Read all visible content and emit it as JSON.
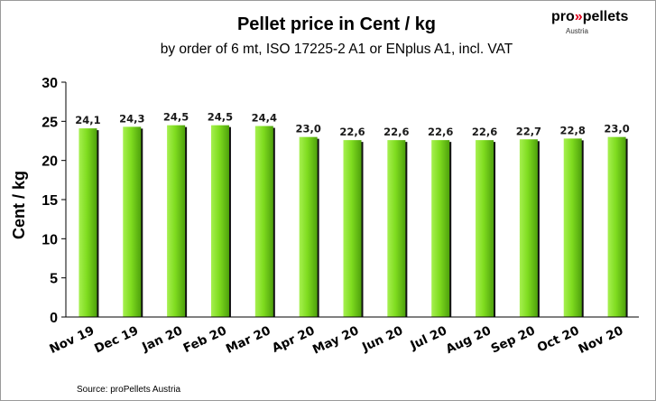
{
  "logo": {
    "prefix": "pro",
    "chevrons": "»",
    "suffix": "pellets",
    "sub": "Austria",
    "prefix_color": "#000000",
    "accent_color": "#e0001b"
  },
  "source": "Source:  proPellets Austria",
  "colors": {
    "bar_light": "#a6f050",
    "bar_main": "#7fdc1f",
    "bar_dark": "#4ea10c",
    "bar_shadow": "#111111"
  },
  "chart_data": {
    "type": "bar",
    "title": "Pellet price in  Cent / kg",
    "subtitle": "by order of 6 mt, ISO 17225-2 A1 or ENplus A1, incl. VAT",
    "ylabel": "Cent  /  kg",
    "xlabel": "",
    "ylim": [
      0,
      30
    ],
    "yticks": [
      0,
      5,
      10,
      15,
      20,
      25,
      30
    ],
    "grid": false,
    "categories": [
      "Nov 19",
      "Dec 19",
      "Jan 20",
      "Feb 20",
      "Mar 20",
      "Apr 20",
      "May 20",
      "Jun 20",
      "Jul 20",
      "Aug 20",
      "Sep 20",
      "Oct 20",
      "Nov 20"
    ],
    "values": [
      24.1,
      24.3,
      24.5,
      24.5,
      24.4,
      23.0,
      22.6,
      22.6,
      22.6,
      22.6,
      22.7,
      22.8,
      23.0
    ],
    "data_labels": [
      "24,1",
      "24,3",
      "24,5",
      "24,5",
      "24,4",
      "23,0",
      "22,6",
      "22,6",
      "22,6",
      "22,6",
      "22,7",
      "22,8",
      "23,0"
    ]
  }
}
